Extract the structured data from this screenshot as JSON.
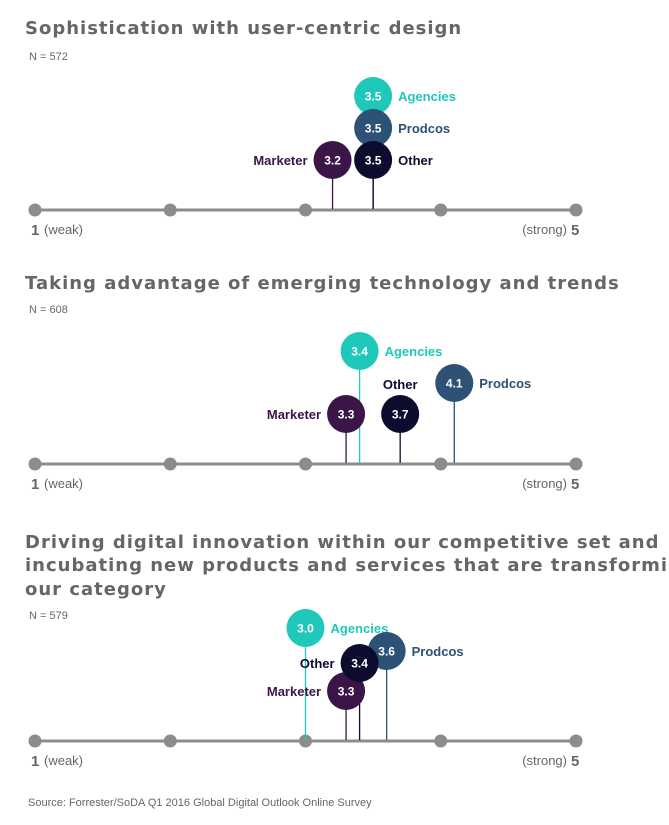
{
  "colors": {
    "axis": "#8c8c8c",
    "text": "#666666",
    "Agencies": "#1fc8b8",
    "Prodcos": "#2d5275",
    "Other": "#0d0b2e",
    "Marketer": "#3b1547"
  },
  "chart_data": [
    {
      "type": "scatter",
      "title": [
        "Sophistication with user-centric design"
      ],
      "n_label": "N = 572",
      "x_min": 1,
      "x_max": 5,
      "min_label": "1",
      "min_desc": "(weak)",
      "max_label": "5",
      "max_desc": "(strong)",
      "points": [
        {
          "group": "Agencies",
          "value": 3.5,
          "label": "3.5"
        },
        {
          "group": "Prodcos",
          "value": 3.5,
          "label": "3.5"
        },
        {
          "group": "Other",
          "value": 3.5,
          "label": "3.5"
        },
        {
          "group": "Marketer",
          "value": 3.2,
          "label": "3.2"
        }
      ]
    },
    {
      "type": "scatter",
      "title": [
        "Taking advantage of emerging technology and trends"
      ],
      "n_label": "N = 608",
      "x_min": 1,
      "x_max": 5,
      "min_label": "1",
      "min_desc": "(weak)",
      "max_label": "5",
      "max_desc": "(strong)",
      "points": [
        {
          "group": "Agencies",
          "value": 3.4,
          "label": "3.4"
        },
        {
          "group": "Prodcos",
          "value": 4.1,
          "label": "4.1"
        },
        {
          "group": "Other",
          "value": 3.7,
          "label": "3.7"
        },
        {
          "group": "Marketer",
          "value": 3.3,
          "label": "3.3"
        }
      ]
    },
    {
      "type": "scatter",
      "title": [
        "Driving digital innovation within our competitive set and",
        "incubating new products and services that are transforming",
        "our category"
      ],
      "n_label": "N = 579",
      "x_min": 1,
      "x_max": 5,
      "min_label": "1",
      "min_desc": "(weak)",
      "max_label": "5",
      "max_desc": "(strong)",
      "points": [
        {
          "group": "Agencies",
          "value": 3.0,
          "label": "3.0"
        },
        {
          "group": "Prodcos",
          "value": 3.6,
          "label": "3.6"
        },
        {
          "group": "Other",
          "value": 3.4,
          "label": "3.4"
        },
        {
          "group": "Marketer",
          "value": 3.3,
          "label": "3.3"
        }
      ]
    }
  ],
  "source": "Source: Forrester/SoDA Q1 2016 Global Digital Outlook Online Survey"
}
